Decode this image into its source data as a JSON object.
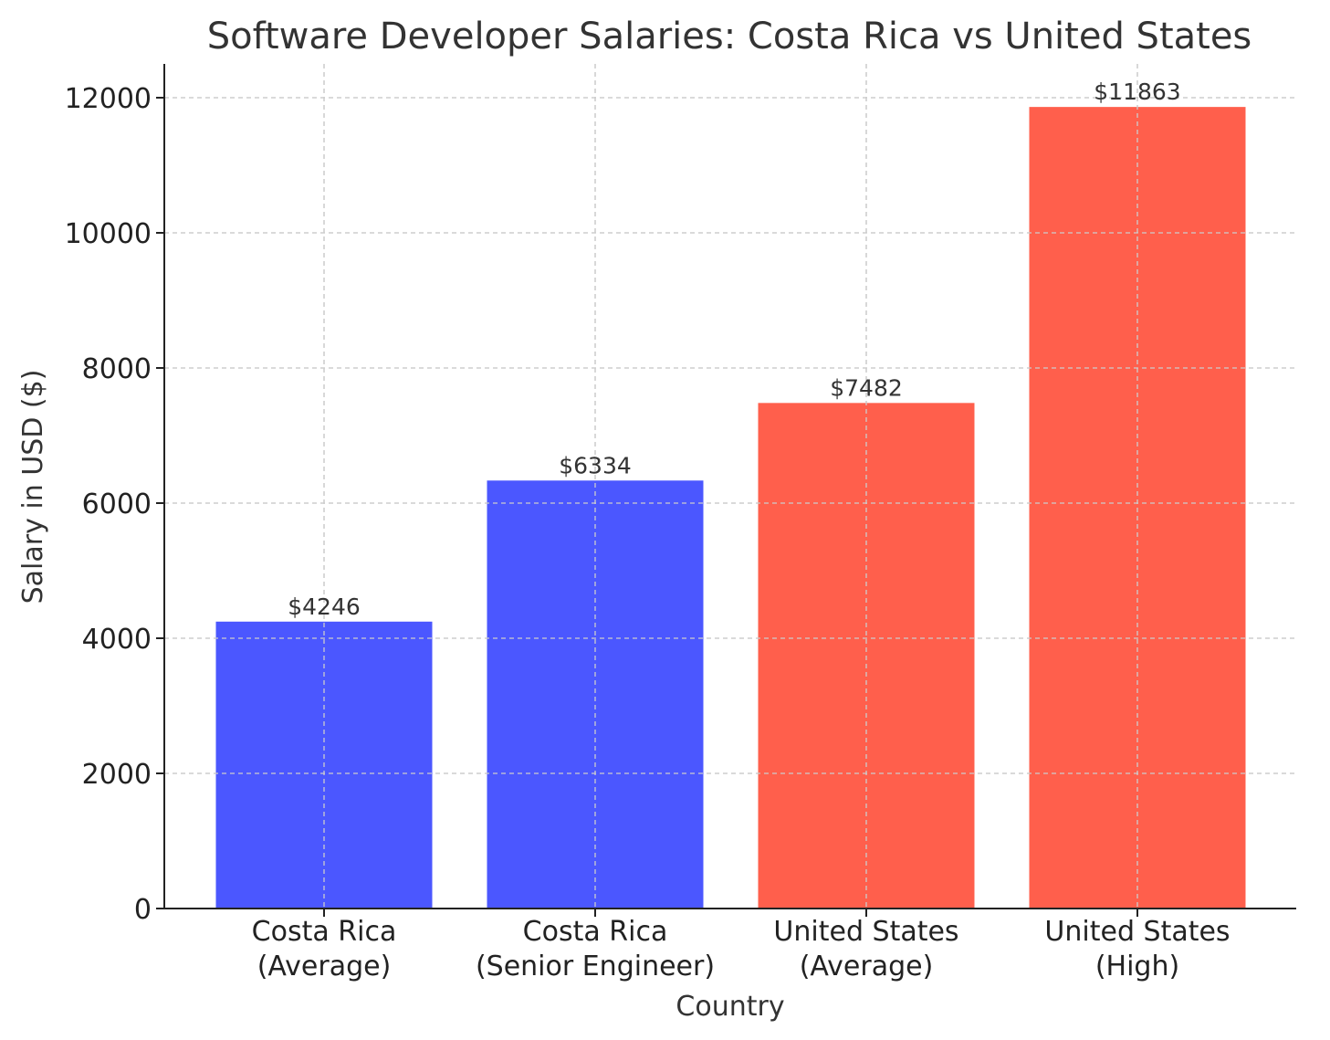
{
  "chart_data": {
    "type": "bar",
    "title": "Software Developer Salaries: Costa Rica vs United States",
    "xlabel": "Country",
    "ylabel": "Salary in USD ($)",
    "categories": [
      [
        "Costa Rica",
        "(Average)"
      ],
      [
        "Costa Rica",
        "(Senior Engineer)"
      ],
      [
        "United States",
        "(Average)"
      ],
      [
        "United States",
        "(High)"
      ]
    ],
    "values": [
      4246,
      6334,
      7482,
      11863
    ],
    "value_labels": [
      "$4246",
      "$6334",
      "$7482",
      "$11863"
    ],
    "bar_colors": [
      "#4b57ff",
      "#4b57ff",
      "#ff5f4c",
      "#ff5f4c"
    ],
    "ylim": [
      0,
      12500
    ],
    "yticks": [
      0,
      2000,
      4000,
      6000,
      8000,
      10000,
      12000
    ],
    "grid": true
  }
}
